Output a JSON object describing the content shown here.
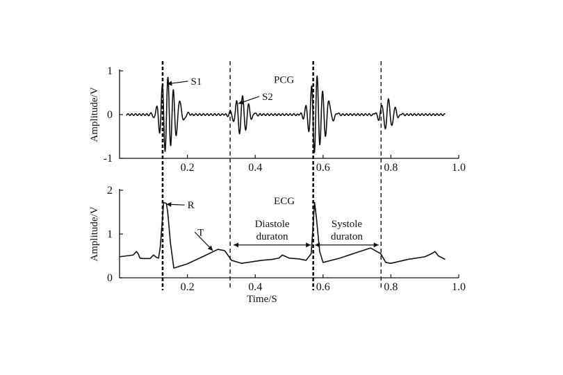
{
  "chart_data": [
    {
      "type": "line",
      "series": [
        {
          "name": "PCG"
        }
      ],
      "ylabel": "Amplitude/V",
      "xlim": [
        0,
        1.0
      ],
      "ylim": [
        -1,
        1
      ],
      "xticks": [
        "0.2",
        "0.4",
        "0.6",
        "0.8",
        "1.0"
      ],
      "yticks": [
        "1",
        "0",
        "-1"
      ],
      "pcg_bursts": [
        {
          "center": 0.14,
          "amp": 0.9,
          "freq": 60,
          "width": 0.025
        },
        {
          "center": 0.175,
          "amp": 0.25,
          "freq": 40,
          "width": 0.02
        },
        {
          "center": 0.36,
          "amp": 0.45,
          "freq": 55,
          "width": 0.025
        },
        {
          "center": 0.58,
          "amp": 0.9,
          "freq": 60,
          "width": 0.025
        },
        {
          "center": 0.615,
          "amp": 0.25,
          "freq": 40,
          "width": 0.02
        },
        {
          "center": 0.79,
          "amp": 0.35,
          "freq": 50,
          "width": 0.025
        }
      ],
      "pcg_x_range": [
        0.02,
        0.96
      ],
      "annotations": [
        {
          "text": "S1",
          "point": [
            0.14,
            0.7
          ],
          "label_pos": [
            0.21,
            0.7
          ]
        },
        {
          "text": "S2",
          "point": [
            0.35,
            0.25
          ],
          "label_pos": [
            0.42,
            0.35
          ]
        }
      ]
    },
    {
      "type": "line",
      "series": [
        {
          "name": "ECG"
        }
      ],
      "xlabel": "Time/S",
      "ylabel": "Amplitude/V",
      "xlim": [
        0,
        1.0
      ],
      "ylim": [
        0,
        2
      ],
      "xticks": [
        "0.2",
        "0.4",
        "0.6",
        "0.8",
        "1.0"
      ],
      "yticks": [
        "2",
        "1",
        "0"
      ],
      "ecg_x": [
        0.0,
        0.02,
        0.04,
        0.05,
        0.055,
        0.06,
        0.07,
        0.09,
        0.1,
        0.11,
        0.115,
        0.12,
        0.13,
        0.138,
        0.142,
        0.15,
        0.16,
        0.2,
        0.25,
        0.29,
        0.31,
        0.33,
        0.36,
        0.42,
        0.45,
        0.47,
        0.48,
        0.5,
        0.53,
        0.55,
        0.565,
        0.575,
        0.58,
        0.59,
        0.6,
        0.65,
        0.7,
        0.74,
        0.77,
        0.785,
        0.8,
        0.85,
        0.9,
        0.92,
        0.93,
        0.94,
        0.96
      ],
      "ecg_y": [
        0.48,
        0.5,
        0.52,
        0.6,
        0.55,
        0.45,
        0.44,
        0.44,
        0.52,
        0.46,
        0.45,
        0.7,
        1.72,
        1.7,
        1.5,
        0.8,
        0.22,
        0.32,
        0.5,
        0.65,
        0.62,
        0.4,
        0.33,
        0.4,
        0.42,
        0.45,
        0.52,
        0.45,
        0.43,
        0.4,
        0.55,
        1.72,
        1.4,
        0.6,
        0.35,
        0.45,
        0.58,
        0.68,
        0.55,
        0.35,
        0.33,
        0.42,
        0.48,
        0.55,
        0.6,
        0.5,
        0.42
      ],
      "annotations": [
        {
          "text": "R",
          "point": [
            0.138,
            1.68
          ],
          "label_pos": [
            0.2,
            1.6
          ]
        },
        {
          "text": "T",
          "point": [
            0.275,
            0.62
          ],
          "label_pos": [
            0.23,
            0.98
          ]
        }
      ],
      "intervals": [
        {
          "start": 0.33,
          "end": 0.57,
          "line1": "Diastole",
          "line2": "duraton"
        },
        {
          "start": 0.57,
          "end": 0.77,
          "line1": "Systole",
          "line2": "duraton"
        }
      ]
    }
  ],
  "markers": [
    {
      "x": 0.127,
      "bold": true
    },
    {
      "x": 0.326,
      "bold": false
    },
    {
      "x": 0.571,
      "bold": true
    },
    {
      "x": 0.771,
      "bold": false
    }
  ]
}
